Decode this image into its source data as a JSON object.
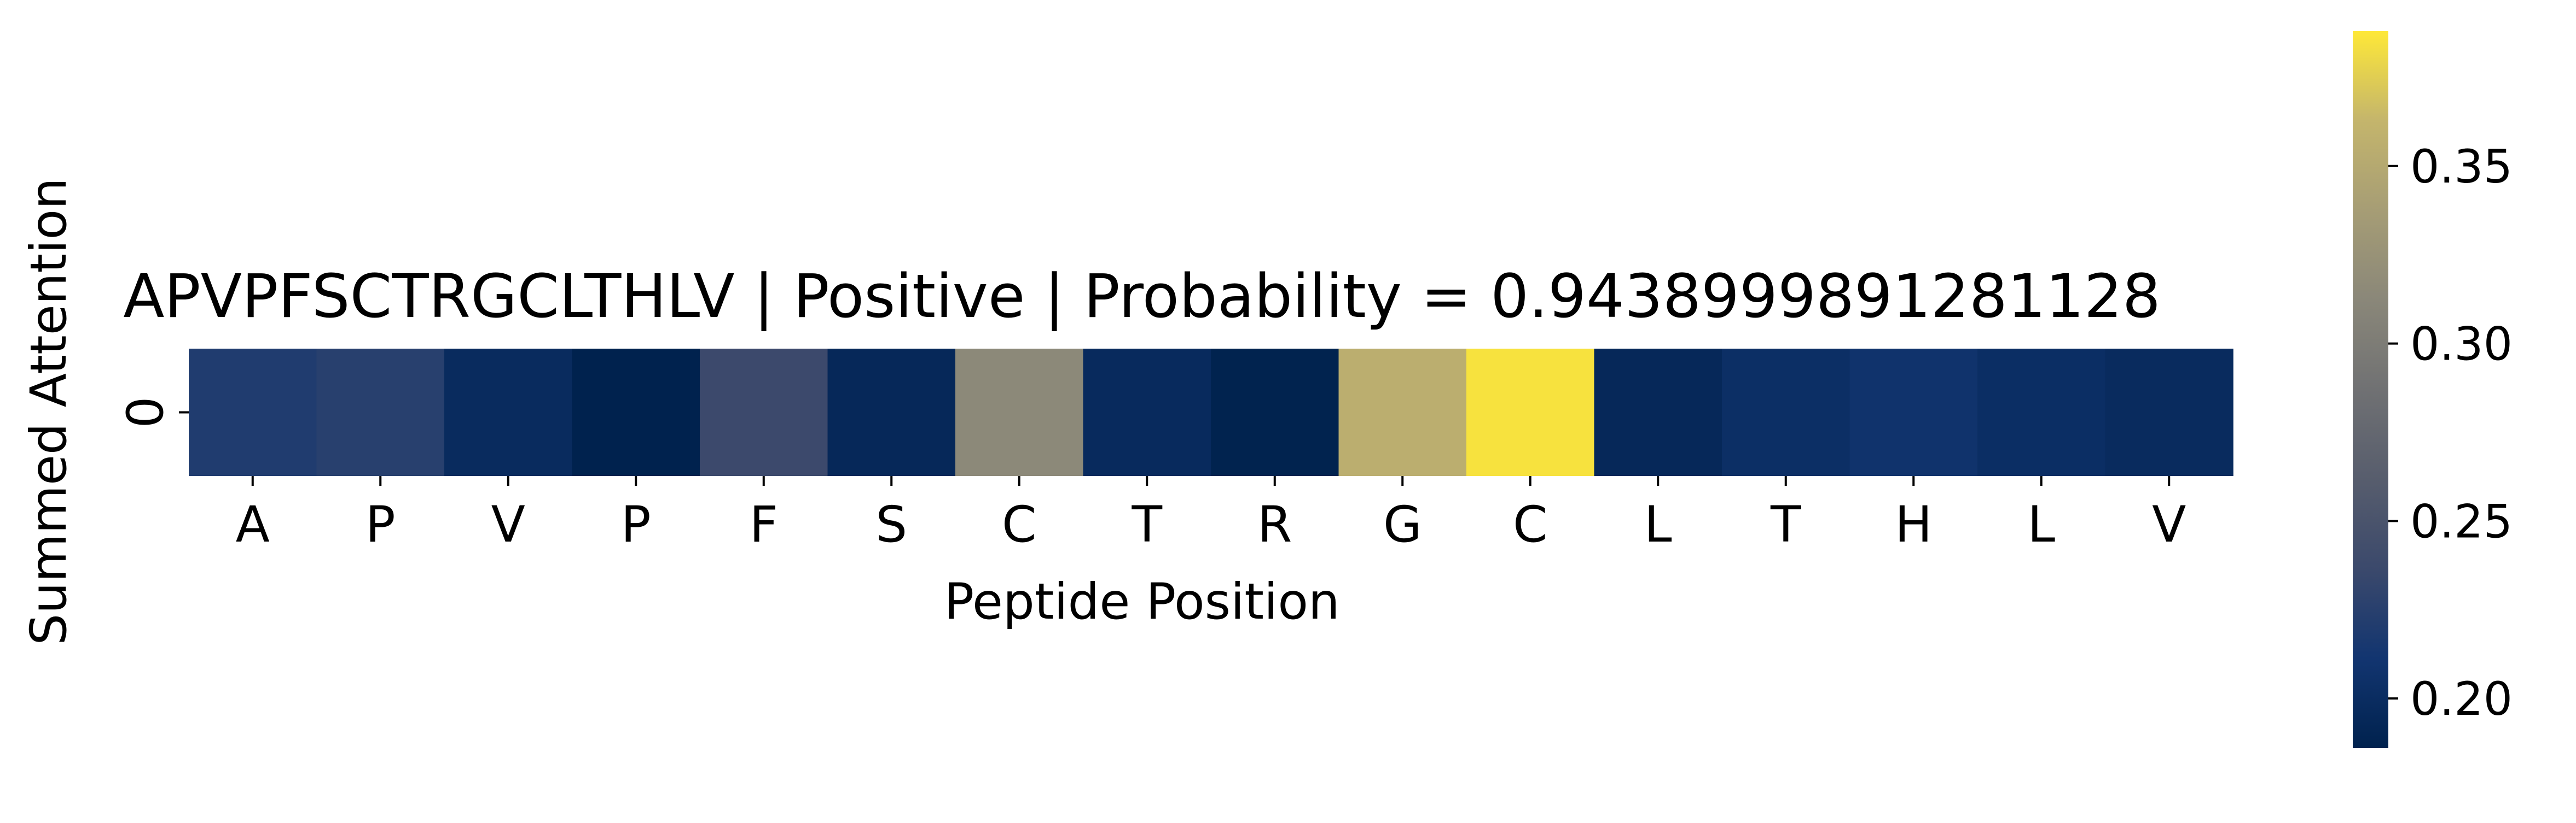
{
  "chart_data": {
    "type": "heatmap",
    "title": "APVPFSCTRGCLTHLV | Positive | Probability = 0.9438999891281128",
    "xlabel": "Peptide Position",
    "ylabel": "Summed Attention",
    "x_categories": [
      "A",
      "P",
      "V",
      "P",
      "F",
      "S",
      "C",
      "T",
      "R",
      "G",
      "C",
      "L",
      "T",
      "H",
      "L",
      "V"
    ],
    "y_categories": [
      "0"
    ],
    "values": [
      [
        0.22,
        0.225,
        0.198,
        0.186,
        0.237,
        0.194,
        0.314,
        0.197,
        0.187,
        0.355,
        0.385,
        0.194,
        0.203,
        0.208,
        0.202,
        0.198
      ]
    ],
    "colormap": "cividis",
    "vmin": 0.186,
    "vmax": 0.388,
    "colorbar": {
      "ticks": [
        0.2,
        0.25,
        0.3,
        0.35
      ],
      "tick_labels": [
        "0.20",
        "0.25",
        "0.30",
        "0.35"
      ]
    }
  }
}
